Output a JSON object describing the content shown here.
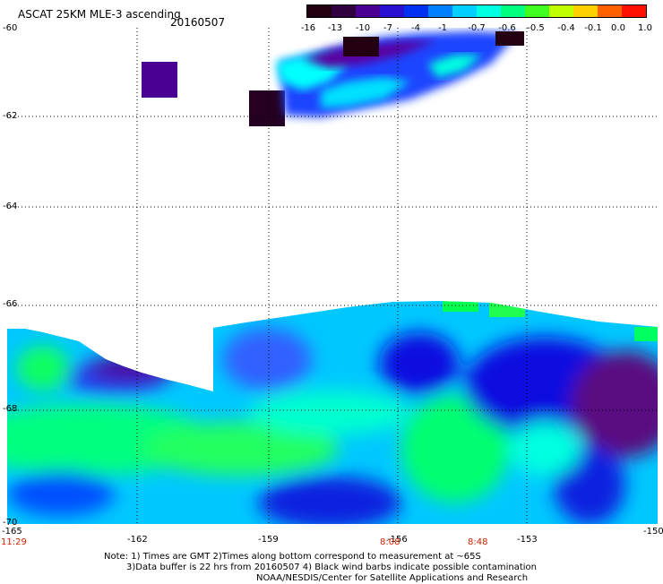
{
  "header": {
    "title": "ASCAT 25KM MLE-3 ascending",
    "date": "20160507"
  },
  "colorbar": {
    "labels": [
      "-16",
      "-13",
      "-10",
      "-7",
      "-4",
      "-1",
      "-0.7",
      "-0.6",
      "-0.5",
      "-0.4",
      "-0.1",
      "0.0",
      "1.0"
    ],
    "colors": [
      "#220011",
      "#300040",
      "#4a0090",
      "#2a10d0",
      "#0030f0",
      "#0080ff",
      "#00d0ff",
      "#00ffe0",
      "#00ff80",
      "#40ff20",
      "#c0ff00",
      "#ffd000",
      "#ff6000",
      "#ff1000"
    ]
  },
  "map": {
    "lat_labels": [
      "-60",
      "-62",
      "-64",
      "-66",
      "-68",
      "-70"
    ],
    "lon_labels": [
      "-165",
      "-162",
      "-159",
      "-156",
      "-153",
      "-150"
    ],
    "time_labels": [
      "11:29",
      "8:08",
      "8:48"
    ]
  },
  "footer": {
    "line1": "Note: 1) Times are GMT 2)Times along bottom correspond to measurement at ~65S",
    "line2": "3)Data buffer is 22 hrs from 20160507 4) Black wind barbs indicate possible contamination",
    "line3": "NOAA/NESDIS/Center for Satellite Applications and Research"
  }
}
